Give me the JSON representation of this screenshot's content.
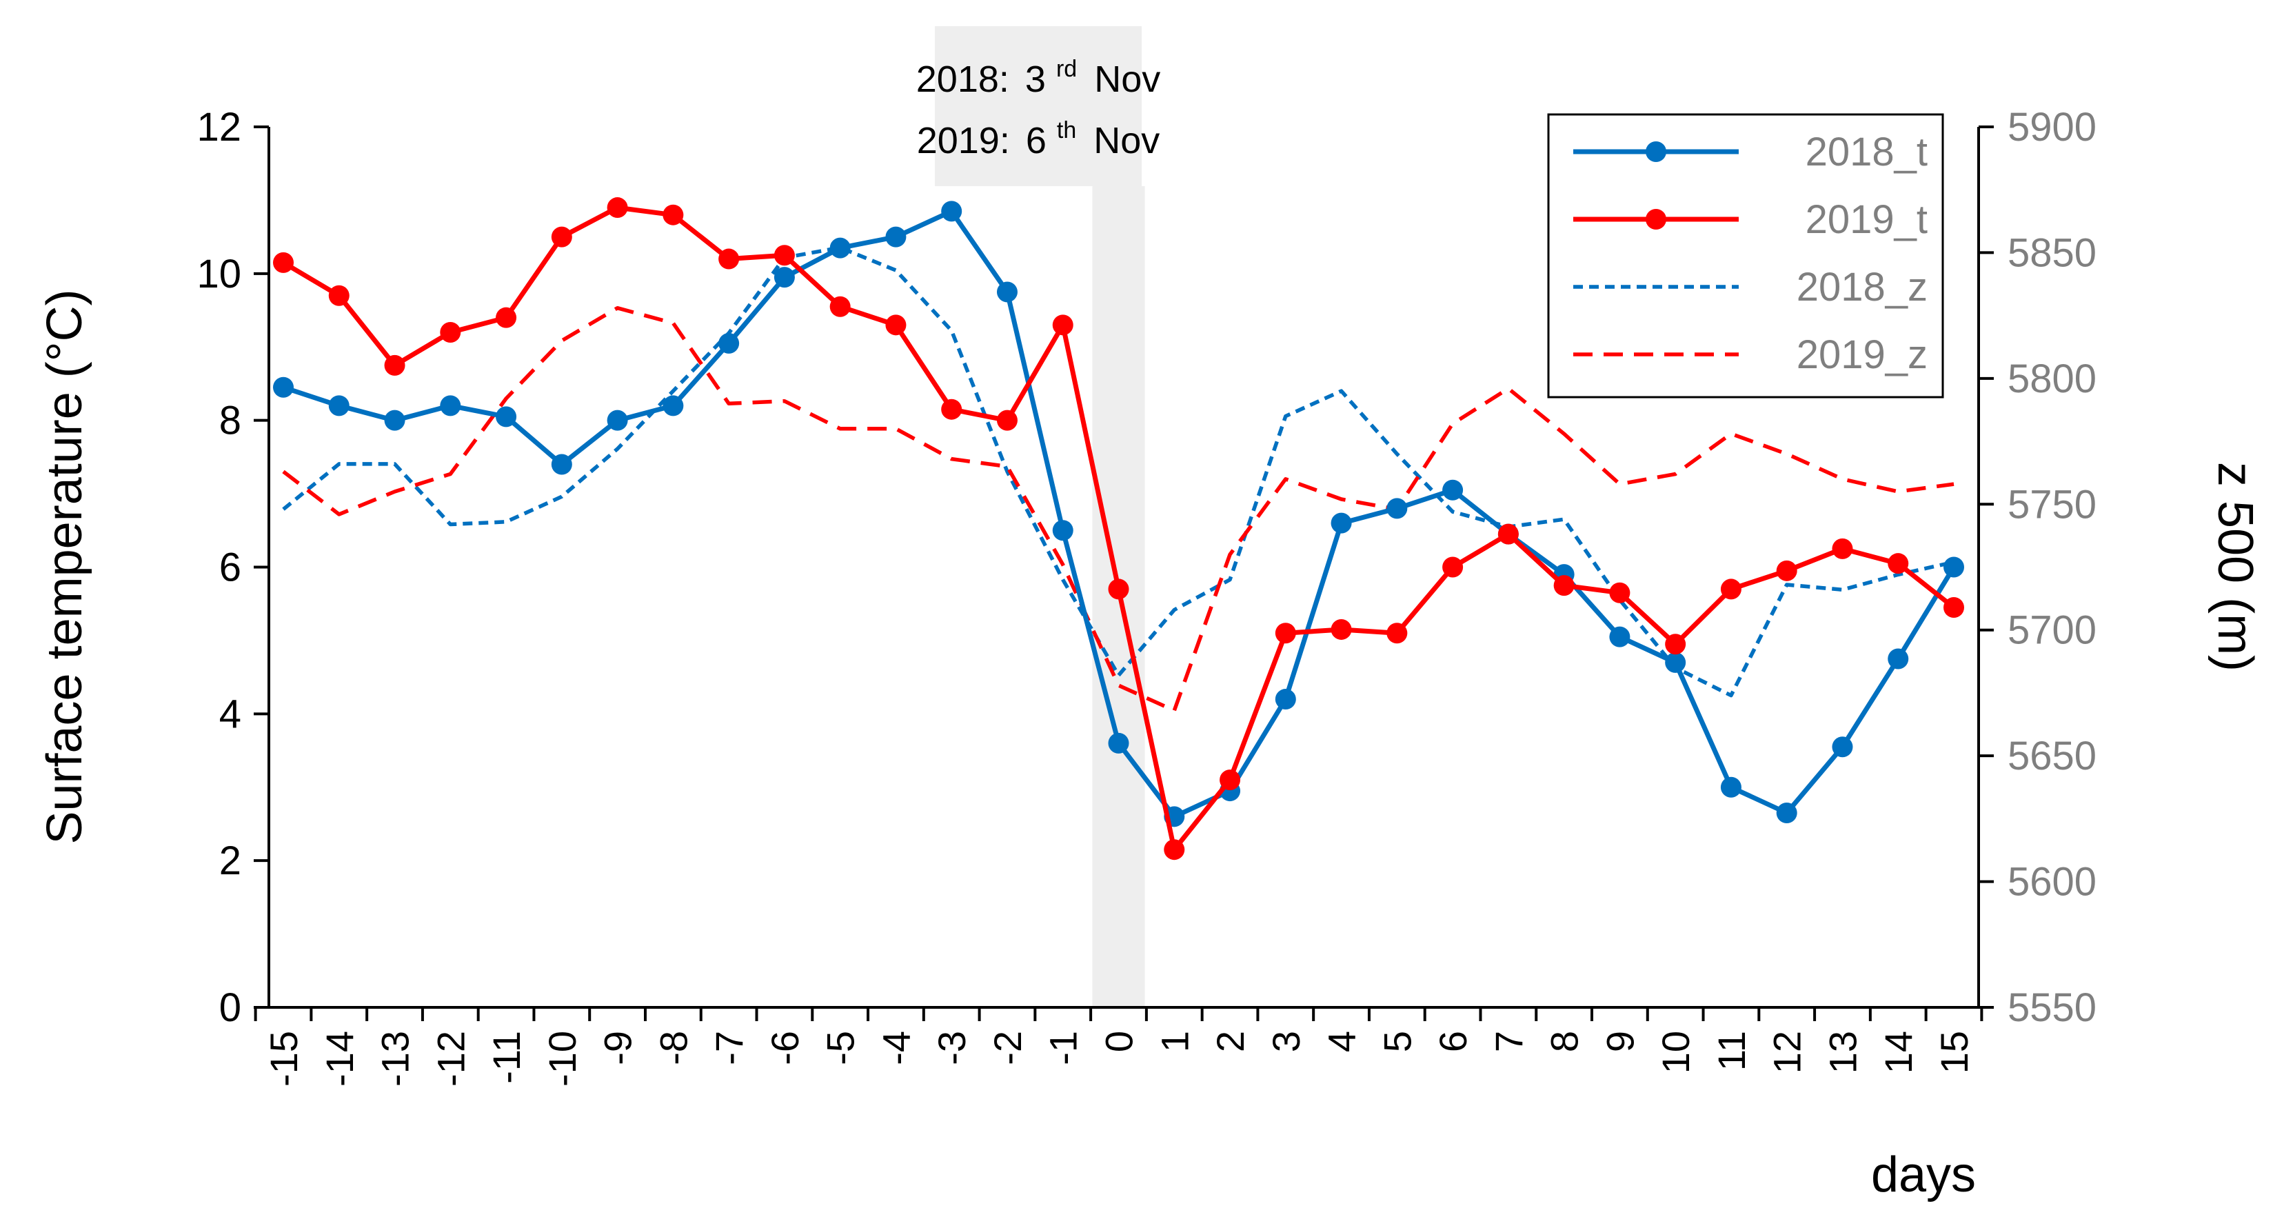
{
  "chart_data": {
    "type": "line",
    "title": "",
    "xlabel": "days",
    "ylabel": "Surface temperature (°C)",
    "y2label": "z 500 (m)",
    "ylim": [
      0,
      12
    ],
    "y2lim": [
      5550,
      5900
    ],
    "yticks": [
      "0",
      "2",
      "4",
      "6",
      "8",
      "10",
      "12"
    ],
    "y2ticks": [
      "5550",
      "5600",
      "5650",
      "5700",
      "5750",
      "5800",
      "5850",
      "5900"
    ],
    "x": [
      -15,
      -14,
      -13,
      -12,
      -11,
      -10,
      -9,
      -8,
      -7,
      -6,
      -5,
      -4,
      -3,
      -2,
      -1,
      0,
      1,
      2,
      3,
      4,
      5,
      6,
      7,
      8,
      9,
      10,
      11,
      12,
      13,
      14,
      15
    ],
    "xtick_labels": [
      "-15",
      "-14",
      "-13",
      "-12",
      "-11",
      "-10",
      "-9",
      "-8",
      "-7",
      "-6",
      "-5",
      "-4",
      "-3",
      "-2",
      "-1",
      "0",
      "1",
      "2",
      "3",
      "4",
      "5",
      "6",
      "7",
      "8",
      "9",
      "10",
      "11",
      "12",
      "13",
      "14",
      "15"
    ],
    "series": [
      {
        "name": "2018_t",
        "axis": "left",
        "color": "#0070c0",
        "style": "solid",
        "markers": true,
        "values": [
          8.45,
          8.2,
          8.0,
          8.2,
          8.05,
          7.4,
          8.0,
          8.2,
          9.05,
          9.95,
          10.35,
          10.5,
          10.85,
          9.75,
          6.5,
          3.6,
          2.6,
          2.95,
          4.2,
          6.6,
          6.8,
          7.05,
          6.45,
          5.9,
          5.05,
          4.7,
          3.0,
          2.65,
          3.55,
          4.75,
          6.0
        ]
      },
      {
        "name": "2019_t",
        "axis": "left",
        "color": "#ff0000",
        "style": "solid",
        "markers": true,
        "values": [
          10.15,
          9.7,
          8.75,
          9.2,
          9.4,
          10.5,
          10.9,
          10.8,
          10.2,
          10.25,
          9.55,
          9.3,
          8.15,
          8.0,
          9.3,
          5.7,
          2.15,
          3.1,
          5.1,
          5.15,
          5.1,
          6.0,
          6.45,
          5.75,
          5.65,
          4.95,
          5.7,
          5.95,
          6.25,
          6.05,
          5.45
        ]
      },
      {
        "name": "2018_z",
        "axis": "right",
        "color": "#0070c0",
        "style": "dotted",
        "markers": false,
        "values": [
          5748,
          5766,
          5766,
          5742,
          5743,
          5753,
          5772,
          5795,
          5818,
          5848,
          5852,
          5843,
          5819,
          5763,
          5720,
          5682,
          5708,
          5720,
          5785,
          5795,
          5770,
          5747,
          5741,
          5744,
          5712,
          5685,
          5674,
          5718,
          5716,
          5722,
          5727
        ]
      },
      {
        "name": "2019_z",
        "axis": "right",
        "color": "#ff0000",
        "style": "dashed",
        "markers": false,
        "values": [
          5763,
          5746,
          5755,
          5762,
          5792,
          5815,
          5828,
          5822,
          5790,
          5791,
          5780,
          5780,
          5768,
          5765,
          5726,
          5678,
          5668,
          5730,
          5760,
          5752,
          5748,
          5782,
          5796,
          5778,
          5758,
          5762,
          5778,
          5770,
          5760,
          5755,
          5758
        ]
      }
    ],
    "annotation": {
      "line1_year": "2018:",
      "line1_day": "3",
      "line1_suffix": "rd",
      "line1_month": "Nov",
      "line2_year": "2019:",
      "line2_day": "6",
      "line2_suffix": "th",
      "line2_month": "Nov"
    },
    "legend_placement": "top-right",
    "grid": false,
    "highlight_band_color": "#eeeeee"
  }
}
